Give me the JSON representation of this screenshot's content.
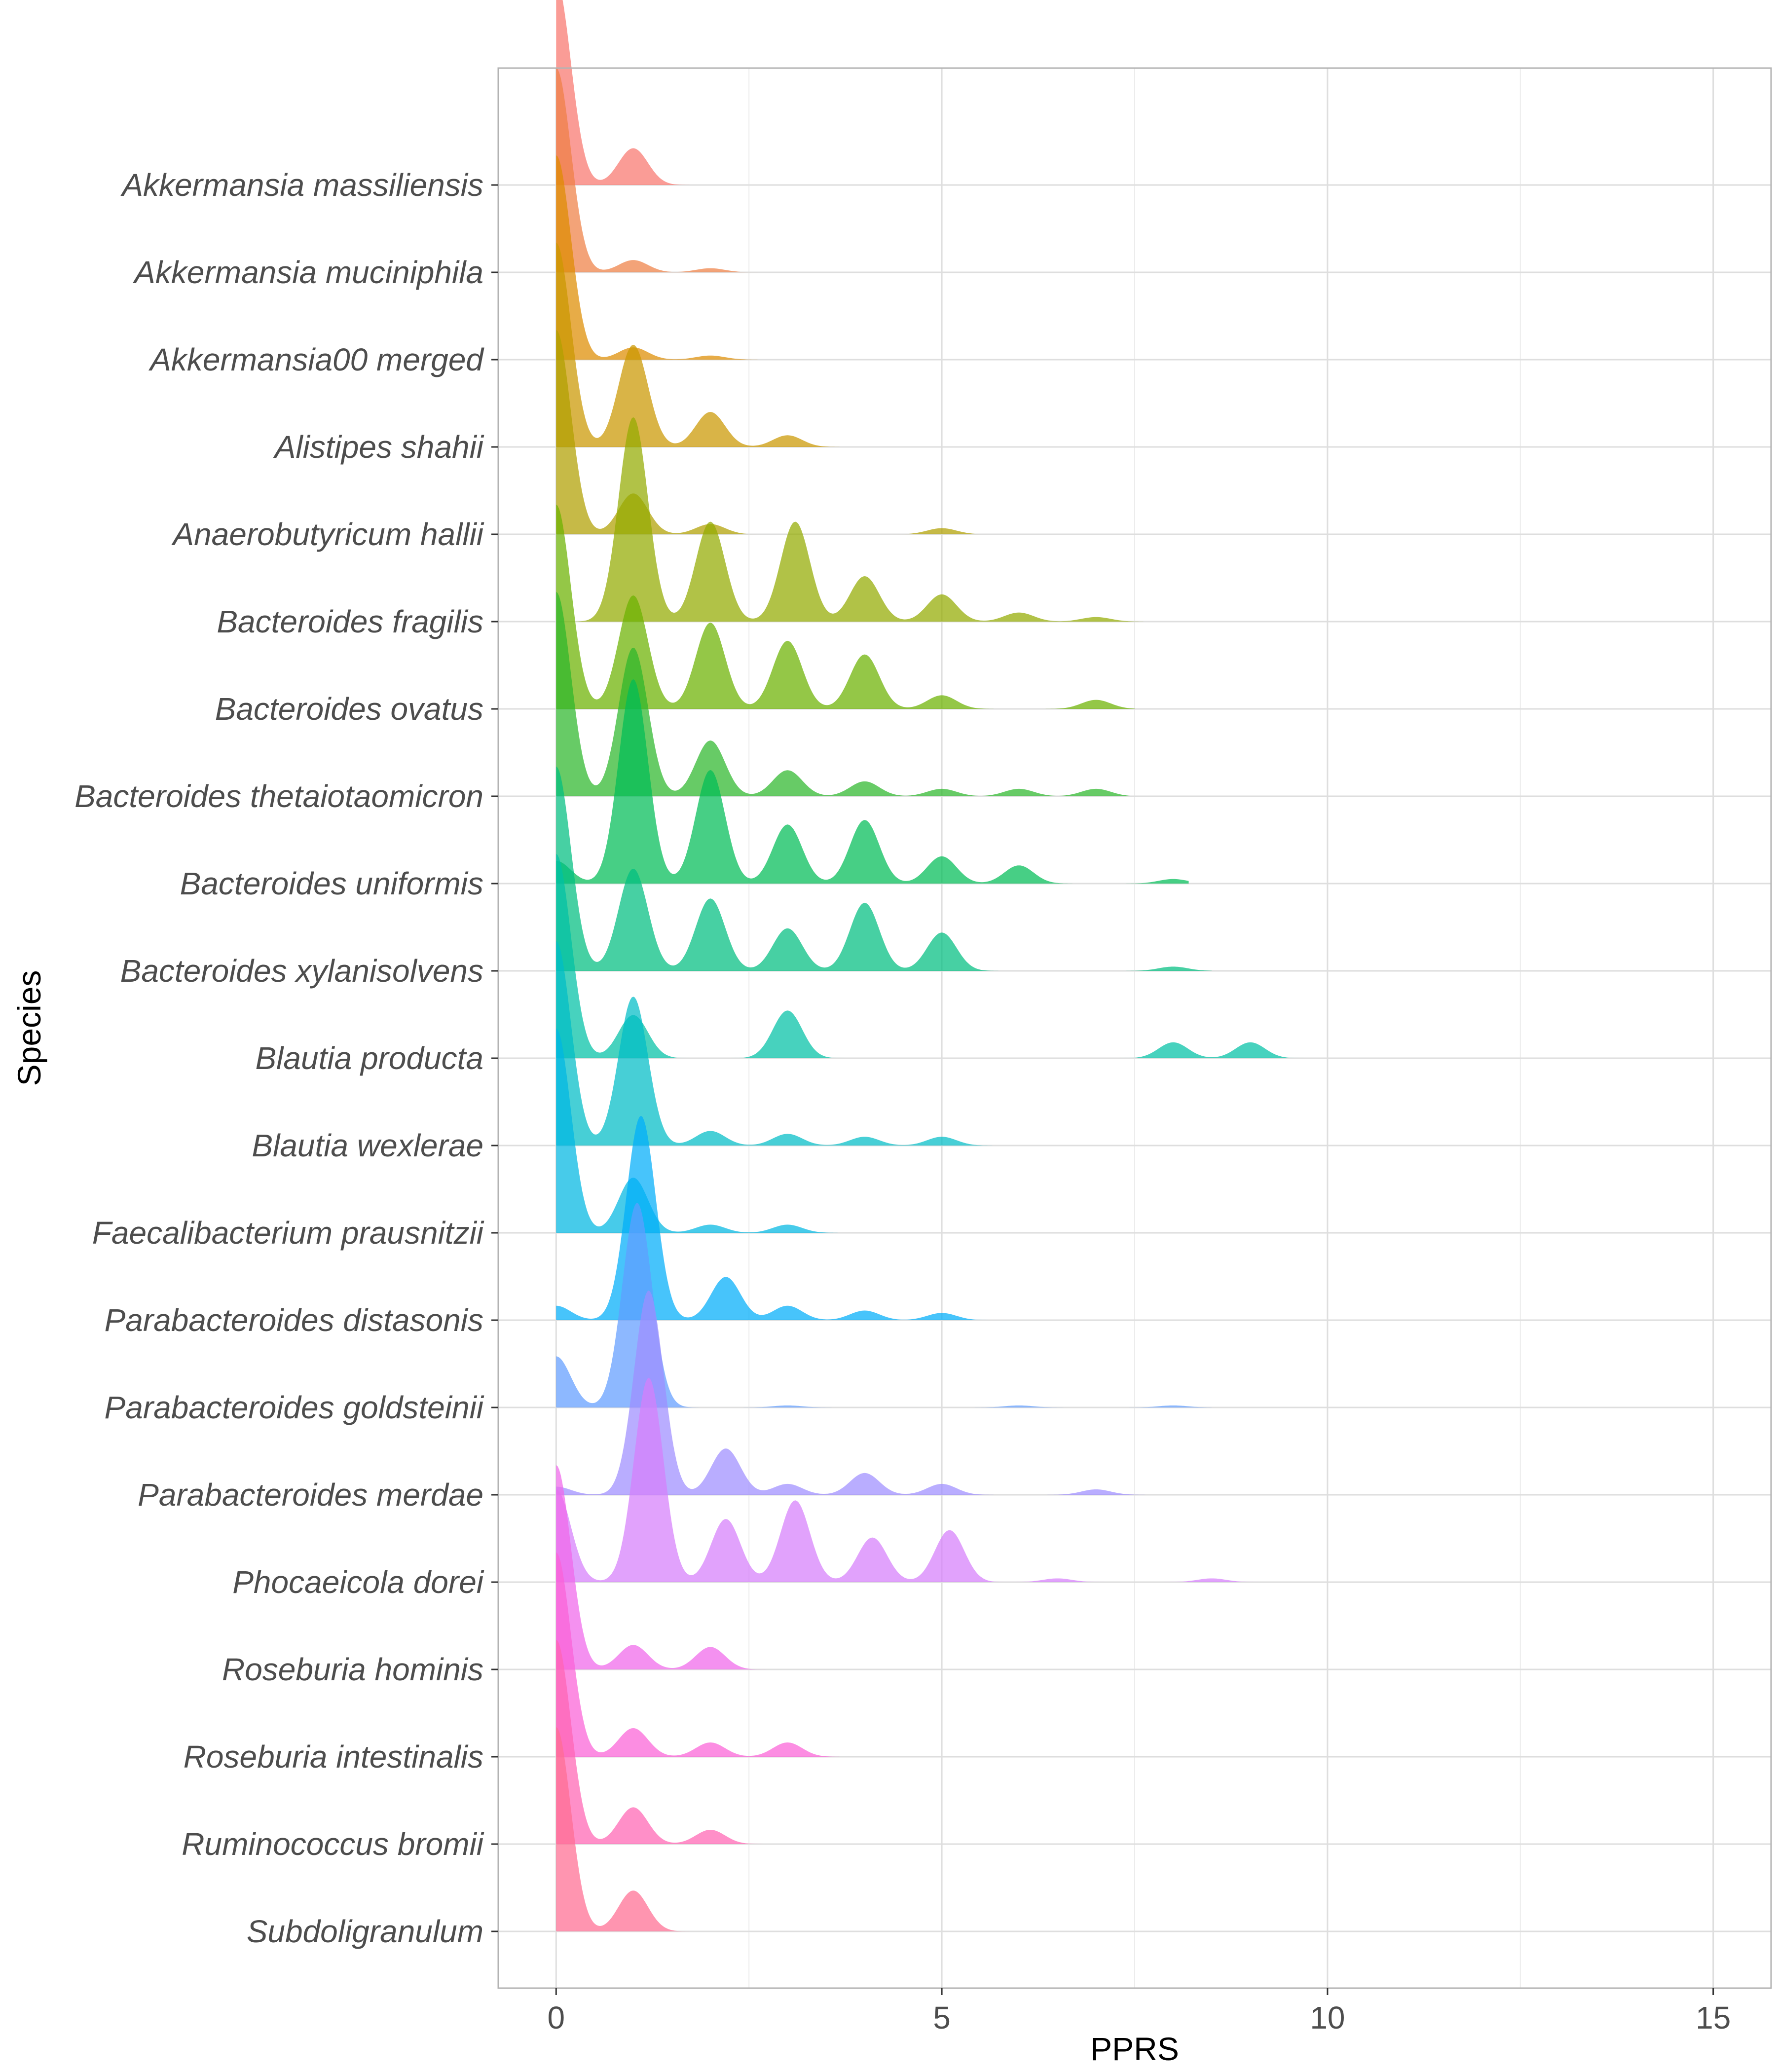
{
  "chart_data": {
    "type": "ridgeline",
    "xlabel": "PPRS",
    "ylabel": "Species",
    "xlim": [
      -0.75,
      15.75
    ],
    "x_ticks": [
      0,
      5,
      10,
      15
    ],
    "x_minor_ticks": [
      2.5,
      7.5,
      12.5
    ],
    "grid": true,
    "ridge_scale": 3,
    "series": [
      {
        "name": "Akkermansia massiliensis",
        "color": "#F8766D",
        "max_x": 1.8,
        "peaks": [
          [
            0,
            1.0
          ],
          [
            1,
            0.18
          ]
        ]
      },
      {
        "name": "Akkermansia muciniphila",
        "color": "#EE8044",
        "max_x": 3.6,
        "peaks": [
          [
            0,
            1.0
          ],
          [
            1,
            0.06
          ],
          [
            2,
            0.02
          ]
        ]
      },
      {
        "name": "Akkermansia00 merged",
        "color": "#DE8C00",
        "max_x": 3.5,
        "peaks": [
          [
            0,
            1.0
          ],
          [
            1,
            0.06
          ],
          [
            2,
            0.02
          ]
        ]
      },
      {
        "name": "Alistipes shahii",
        "color": "#CA9700",
        "max_x": 3.7,
        "peaks": [
          [
            0,
            0.7
          ],
          [
            1,
            0.35
          ],
          [
            2,
            0.12
          ],
          [
            3,
            0.04
          ]
        ]
      },
      {
        "name": "Anaerobutyricum hallii",
        "color": "#B0A000",
        "max_x": 5.5,
        "peaks": [
          [
            0,
            1.0
          ],
          [
            1,
            0.2
          ],
          [
            2,
            0.05
          ],
          [
            5,
            0.03
          ]
        ]
      },
      {
        "name": "Bacteroides fragilis",
        "color": "#93AA00",
        "max_x": 8.4,
        "peaks": [
          [
            1,
            0.45
          ],
          [
            2,
            0.22
          ],
          [
            3.1,
            0.22
          ],
          [
            4,
            0.1
          ],
          [
            5,
            0.06
          ],
          [
            6,
            0.02
          ],
          [
            7,
            0.01
          ]
        ]
      },
      {
        "name": "Bacteroides ovatus",
        "color": "#6BB100",
        "max_x": 7.5,
        "peaks": [
          [
            0,
            0.45
          ],
          [
            1,
            0.25
          ],
          [
            2,
            0.19
          ],
          [
            3,
            0.15
          ],
          [
            4,
            0.12
          ],
          [
            5,
            0.03
          ],
          [
            7,
            0.02
          ]
        ]
      },
      {
        "name": "Bacteroides thetaiotaomicron",
        "color": "#2CB72B",
        "max_x": 7.5,
        "peaks": [
          [
            0,
            0.55
          ],
          [
            1,
            0.4
          ],
          [
            2,
            0.15
          ],
          [
            3,
            0.07
          ],
          [
            4,
            0.04
          ],
          [
            5,
            0.02
          ],
          [
            6,
            0.02
          ],
          [
            7,
            0.02
          ]
        ]
      },
      {
        "name": "Bacteroides uniformis",
        "color": "#00BC56",
        "max_x": 8.2,
        "peaks": [
          [
            0,
            0.05
          ],
          [
            1,
            0.45
          ],
          [
            2,
            0.25
          ],
          [
            3,
            0.13
          ],
          [
            4,
            0.14
          ],
          [
            5,
            0.06
          ],
          [
            6,
            0.04
          ],
          [
            8,
            0.01
          ]
        ]
      },
      {
        "name": "Bacteroides xylanisolvens",
        "color": "#00BE80",
        "max_x": 8.5,
        "peaks": [
          [
            0,
            0.48
          ],
          [
            1,
            0.24
          ],
          [
            2,
            0.17
          ],
          [
            3,
            0.1
          ],
          [
            4,
            0.16
          ],
          [
            5,
            0.09
          ],
          [
            8,
            0.01
          ]
        ]
      },
      {
        "name": "Blautia producta",
        "color": "#00C0A5",
        "max_x": 9.8,
        "peaks": [
          [
            0,
            0.9
          ],
          [
            1,
            0.19
          ],
          [
            3,
            0.21
          ],
          [
            8,
            0.07
          ],
          [
            9,
            0.07
          ]
        ]
      },
      {
        "name": "Blautia wexlerae",
        "color": "#00BDC6",
        "max_x": 5.7,
        "peaks": [
          [
            0,
            0.7
          ],
          [
            1,
            0.51
          ],
          [
            2,
            0.05
          ],
          [
            3,
            0.04
          ],
          [
            4,
            0.03
          ],
          [
            5,
            0.03
          ]
        ]
      },
      {
        "name": "Faecalibacterium prausnitzii",
        "color": "#00B7E2",
        "max_x": 4.2,
        "peaks": [
          [
            0,
            1.0
          ],
          [
            1,
            0.27
          ],
          [
            2,
            0.04
          ],
          [
            3,
            0.04
          ]
        ]
      },
      {
        "name": "Parabacteroides distasonis",
        "color": "#00ADF9",
        "max_x": 5.6,
        "peaks": [
          [
            0,
            0.06
          ],
          [
            1.1,
            0.85
          ],
          [
            2.2,
            0.18
          ],
          [
            3,
            0.06
          ],
          [
            4,
            0.04
          ],
          [
            5,
            0.03
          ]
        ]
      },
      {
        "name": "Parabacteroides goldsteinii",
        "color": "#619CFF",
        "max_x": 8.5,
        "peaks": [
          [
            0,
            0.25
          ],
          [
            1.05,
            1.0
          ],
          [
            3,
            0.01
          ],
          [
            6,
            0.01
          ],
          [
            8,
            0.01
          ]
        ]
      },
      {
        "name": "Parabacteroides merdae",
        "color": "#9E8DFF",
        "max_x": 7.8,
        "peaks": [
          [
            0,
            0.03
          ],
          [
            1.2,
            0.75
          ],
          [
            2.2,
            0.17
          ],
          [
            3,
            0.04
          ],
          [
            4,
            0.08
          ],
          [
            5,
            0.04
          ],
          [
            7,
            0.02
          ]
        ]
      },
      {
        "name": "Phocaeicola dorei",
        "color": "#D57EFB",
        "max_x": 10.5,
        "peaks": [
          [
            0,
            0.25
          ],
          [
            1.2,
            0.55
          ],
          [
            2.2,
            0.17
          ],
          [
            3.1,
            0.22
          ],
          [
            4.1,
            0.12
          ],
          [
            5.1,
            0.14
          ],
          [
            6.5,
            0.01
          ],
          [
            8.5,
            0.01
          ]
        ]
      },
      {
        "name": "Roseburia hominis",
        "color": "#F066EA",
        "max_x": 2.8,
        "peaks": [
          [
            0,
            1.0
          ],
          [
            1,
            0.12
          ],
          [
            2,
            0.11
          ]
        ]
      },
      {
        "name": "Roseburia intestinalis",
        "color": "#FB61D7",
        "max_x": 3.7,
        "peaks": [
          [
            0,
            1.0
          ],
          [
            1,
            0.14
          ],
          [
            2,
            0.07
          ],
          [
            3,
            0.07
          ]
        ]
      },
      {
        "name": "Ruminococcus bromii",
        "color": "#FF64B3",
        "max_x": 2.8,
        "peaks": [
          [
            0,
            1.0
          ],
          [
            1,
            0.18
          ],
          [
            2,
            0.07
          ]
        ]
      },
      {
        "name": "Subdoligranulum",
        "color": "#FF6C91",
        "max_x": 1.8,
        "peaks": [
          [
            0,
            1.0
          ],
          [
            1,
            0.2
          ]
        ]
      }
    ]
  }
}
